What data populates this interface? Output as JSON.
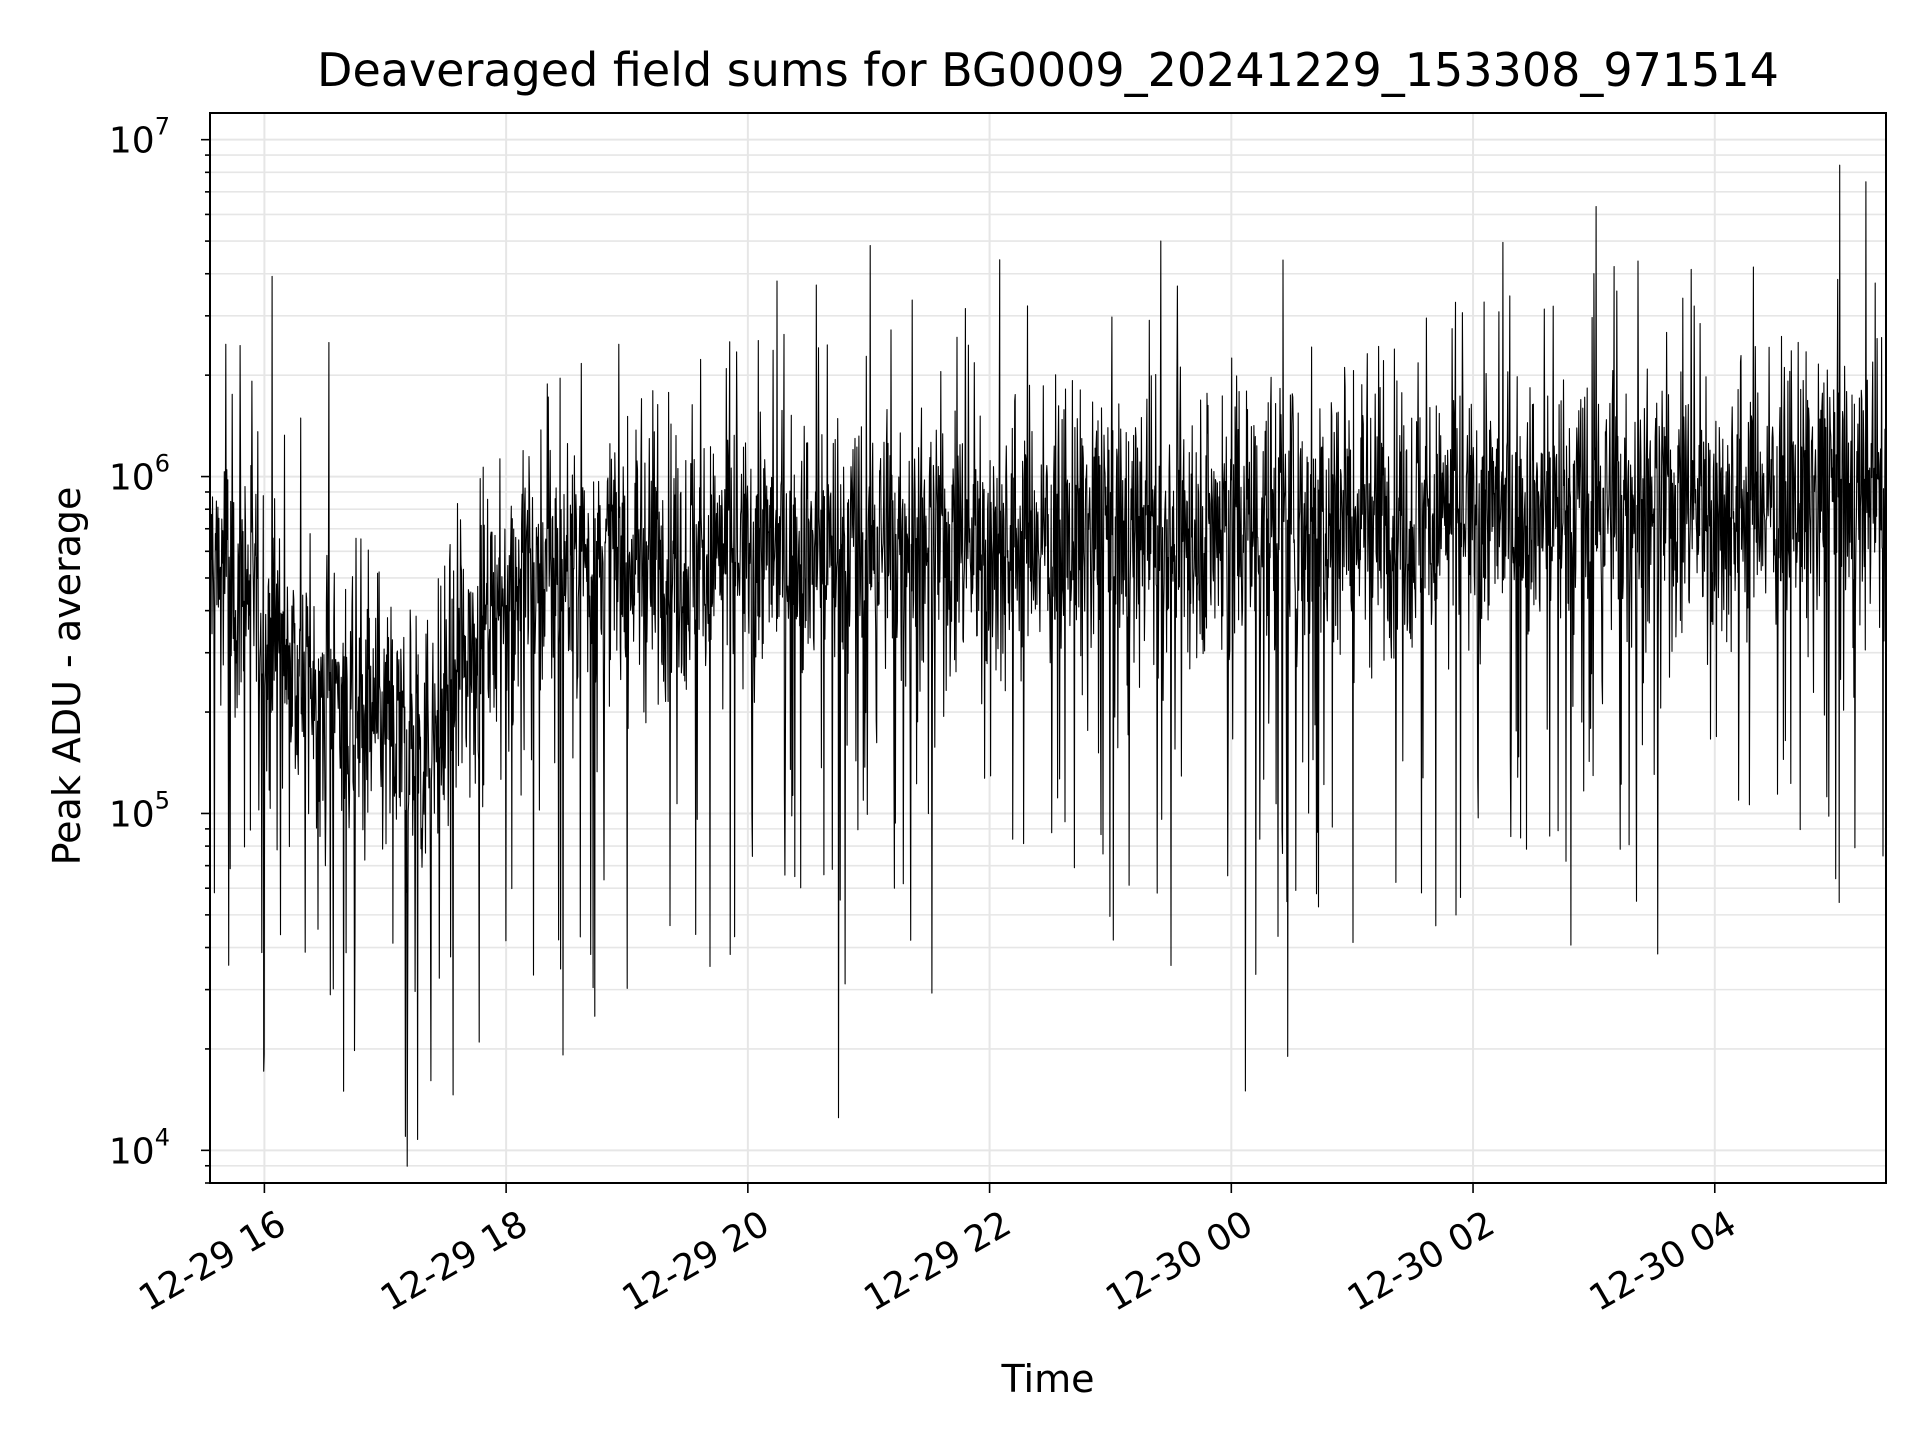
{
  "chart_data": {
    "type": "line",
    "title": "Deaveraged field sums for BG0009_20241229_153308_971514",
    "xlabel": "Time",
    "ylabel": "Peak ADU - average",
    "y_scale": "log",
    "ylim": [
      8000,
      12000000
    ],
    "xlim": [
      "2024-12-29 15:33",
      "2024-12-30 05:25"
    ],
    "grid": true,
    "line_color": "#000000",
    "grid_color": "#e6e6e6",
    "x_ticks": [
      "12-29 16",
      "12-29 18",
      "12-29 20",
      "12-29 22",
      "12-30 00",
      "12-30 02",
      "12-30 04"
    ],
    "y_ticks": [
      {
        "base": "10",
        "exp": "4",
        "value": 10000
      },
      {
        "base": "10",
        "exp": "5",
        "value": 100000
      },
      {
        "base": "10",
        "exp": "6",
        "value": 1000000
      },
      {
        "base": "10",
        "exp": "7",
        "value": 10000000
      }
    ],
    "series": [
      {
        "trend": [
          {
            "t": "2024-12-29 15:33",
            "y": 550000
          },
          {
            "t": "2024-12-29 15:55",
            "y": 450000
          },
          {
            "t": "2024-12-29 16:20",
            "y": 250000
          },
          {
            "t": "2024-12-29 16:50",
            "y": 180000
          },
          {
            "t": "2024-12-29 17:20",
            "y": 150000
          },
          {
            "t": "2024-12-29 17:45",
            "y": 330000
          },
          {
            "t": "2024-12-29 18:00",
            "y": 500000
          },
          {
            "t": "2024-12-29 20:00",
            "y": 600000
          },
          {
            "t": "2024-12-29 22:00",
            "y": 650000
          },
          {
            "t": "2024-12-30 00:00",
            "y": 720000
          },
          {
            "t": "2024-12-30 02:00",
            "y": 780000
          },
          {
            "t": "2024-12-30 04:00",
            "y": 850000
          },
          {
            "t": "2024-12-30 05:25",
            "y": 900000
          }
        ],
        "spikes": [
          {
            "t": "2024-12-29 16:32",
            "y": 2500000
          },
          {
            "t": "2024-12-29 17:10",
            "y": 11000
          },
          {
            "t": "2024-12-29 18:44",
            "y": 25000
          },
          {
            "t": "2024-12-29 20:34",
            "y": 3700000
          },
          {
            "t": "2024-12-29 20:45",
            "y": 12500
          },
          {
            "t": "2024-12-29 22:05",
            "y": 4400000
          },
          {
            "t": "2024-12-29 23:25",
            "y": 5000000
          },
          {
            "t": "2024-12-30 00:07",
            "y": 15000
          },
          {
            "t": "2024-12-30 00:28",
            "y": 19000
          },
          {
            "t": "2024-12-30 03:00",
            "y": 4000000
          },
          {
            "t": "2024-12-30 03:10",
            "y": 4200000
          },
          {
            "t": "2024-12-30 05:02",
            "y": 8400000
          },
          {
            "t": "2024-12-30 05:15",
            "y": 7500000
          }
        ]
      }
    ]
  }
}
